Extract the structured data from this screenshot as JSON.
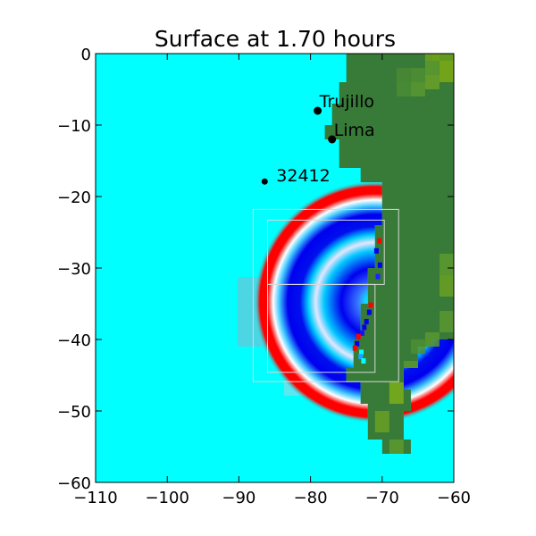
{
  "chart_data": {
    "type": "heatmap",
    "title": "Surface at 1.70 hours",
    "xlabel": "",
    "ylabel": "",
    "xlim": [
      -110,
      -60
    ],
    "ylim": [
      -60,
      0
    ],
    "x_ticks": [
      -110,
      -100,
      -90,
      -80,
      -70,
      -60
    ],
    "y_ticks": [
      0,
      -10,
      -20,
      -30,
      -40,
      -50,
      -60
    ],
    "x_tick_labels": [
      "−110",
      "−100",
      "−90",
      "−80",
      "−70",
      "−60"
    ],
    "y_tick_labels": [
      "0",
      "−10",
      "−20",
      "−30",
      "−40",
      "−50",
      "−60"
    ],
    "grid": false,
    "colors": {
      "ocean": "#00ffff",
      "land": "#387a38",
      "highland": "#7aaa1a",
      "wave_crest": "#ff0000",
      "wave_trough": "#0000ee",
      "refinement_box": "#d8d8d8"
    },
    "locations": [
      {
        "name": "Trujillo",
        "lon": -79.0,
        "lat": -8.0
      },
      {
        "name": "Lima",
        "lon": -77.0,
        "lat": -12.0
      },
      {
        "name": "32412",
        "lon": -86.4,
        "lat": -17.9
      }
    ],
    "refinement_regions": [
      {
        "lon": [
          -88,
          -67.7
        ],
        "lat": [
          -45.9,
          -21.8
        ]
      },
      {
        "lon": [
          -86,
          -69.7
        ],
        "lat": [
          -32.3,
          -23.3
        ]
      },
      {
        "lon": [
          -86,
          -71
        ],
        "lat": [
          -44.6,
          -32.3
        ]
      }
    ],
    "wave": {
      "center_lon": -72.6,
      "center_lat": -34.8,
      "leading_crest_radius_deg": 17.0,
      "time_hours": 1.7
    }
  }
}
